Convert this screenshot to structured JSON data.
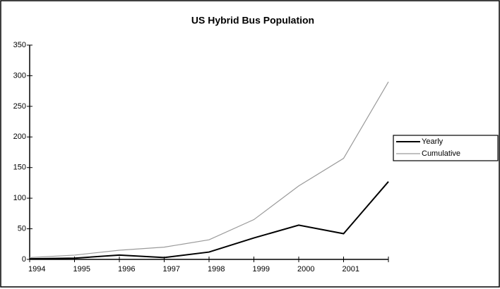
{
  "chart_data": {
    "type": "line",
    "title": "US Hybrid Bus Population",
    "categories": [
      "1994",
      "1995",
      "1996",
      "1997",
      "1998",
      "1999",
      "2000",
      "2001",
      null
    ],
    "series": [
      {
        "name": "Yearly",
        "color": "#000000",
        "values": [
          1,
          2,
          7,
          3,
          12,
          35,
          56,
          42,
          127
        ]
      },
      {
        "name": "Cumulative",
        "color": "#9a9a9a",
        "values": [
          3,
          7,
          15,
          20,
          32,
          65,
          120,
          165,
          290
        ]
      }
    ],
    "ylim": [
      0,
      350
    ],
    "yticks": [
      0,
      50,
      100,
      150,
      200,
      250,
      300,
      350
    ],
    "grid": false,
    "legend": "right"
  }
}
